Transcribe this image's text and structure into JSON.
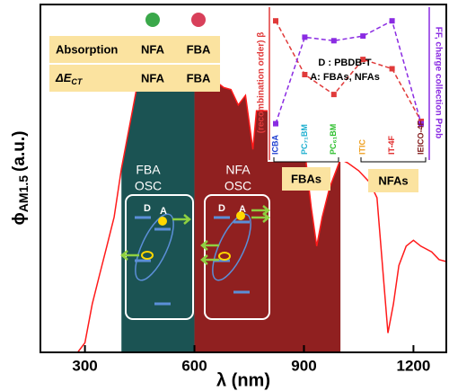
{
  "chart_data": [
    {
      "type": "line",
      "x_label": "λ (nm)",
      "y_label": {
        "symbol": "ϕ",
        "subscript": "AM1.5",
        "unit": "(a.u.)"
      },
      "xlim": [
        178,
        1290
      ],
      "xticks": [
        300,
        600,
        900,
        1200
      ],
      "ylim": [
        0,
        1.8
      ],
      "color": "#ff1a1a",
      "x": [
        280,
        300,
        320,
        340,
        360,
        380,
        400,
        420,
        440,
        460,
        480,
        500,
        520,
        540,
        560,
        580,
        600,
        620,
        640,
        660,
        680,
        700,
        720,
        740,
        760,
        770,
        800,
        820,
        840,
        860,
        880,
        900,
        920,
        935,
        950,
        970,
        990,
        1000,
        1020,
        1050,
        1080,
        1100,
        1115,
        1130,
        1145,
        1160,
        1180,
        1200,
        1220,
        1250,
        1270,
        1290
      ],
      "values": [
        0.0,
        0.05,
        0.25,
        0.4,
        0.55,
        0.7,
        0.95,
        1.15,
        1.35,
        1.45,
        1.5,
        1.52,
        1.47,
        1.5,
        1.46,
        1.48,
        1.44,
        1.46,
        1.42,
        1.4,
        1.37,
        1.36,
        1.28,
        1.33,
        1.05,
        1.25,
        1.25,
        1.18,
        1.2,
        1.15,
        1.12,
        1.08,
        0.75,
        0.55,
        0.7,
        0.85,
        0.95,
        1.0,
        0.98,
        0.94,
        0.88,
        0.8,
        0.45,
        0.1,
        0.25,
        0.45,
        0.55,
        0.58,
        0.55,
        0.52,
        0.48,
        0.47
      ],
      "absorption_ranges": [
        {
          "color": "#0f4a4a",
          "range": [
            400,
            600
          ]
        },
        {
          "color": "#8a1414",
          "range": [
            600,
            1000
          ]
        }
      ]
    },
    {
      "type": "line",
      "categories": [
        "ICBA",
        "PC₇₁BM",
        "PC₆₁BM",
        "ITIC",
        "IT-4F",
        "IEICO-4F"
      ],
      "category_colors": [
        "#1f3fd0",
        "#20b0d0",
        "#30c030",
        "#f0a020",
        "#e02020",
        "#801818"
      ],
      "ylim": [
        0,
        1
      ],
      "y_label": "(recombination order) β",
      "y2_label": "FF, charge collection Prob",
      "series": [
        {
          "color": "#e03a3a",
          "values": [
            0.96,
            0.5,
            0.33,
            0.63,
            0.55,
            0.1
          ]
        },
        {
          "color": "#8a2be2",
          "values": [
            0.08,
            0.82,
            0.79,
            0.83,
            0.96,
            0.08
          ]
        }
      ],
      "annotation": [
        "D : PBDB-T",
        "A: FBAs, NFAs"
      ],
      "groups": [
        "FBAs",
        "NFAs"
      ]
    }
  ],
  "table": {
    "rows": [
      [
        "Absorption",
        "NFA",
        "FBA"
      ],
      [
        {
          "main": "ΔE",
          "sub": "CT"
        },
        "NFA",
        "FBA"
      ]
    ]
  },
  "schematic": {
    "fba": [
      "FBA",
      "OSC"
    ],
    "nfa": [
      "NFA",
      "OSC"
    ],
    "donor": "D",
    "acceptor": "A"
  }
}
